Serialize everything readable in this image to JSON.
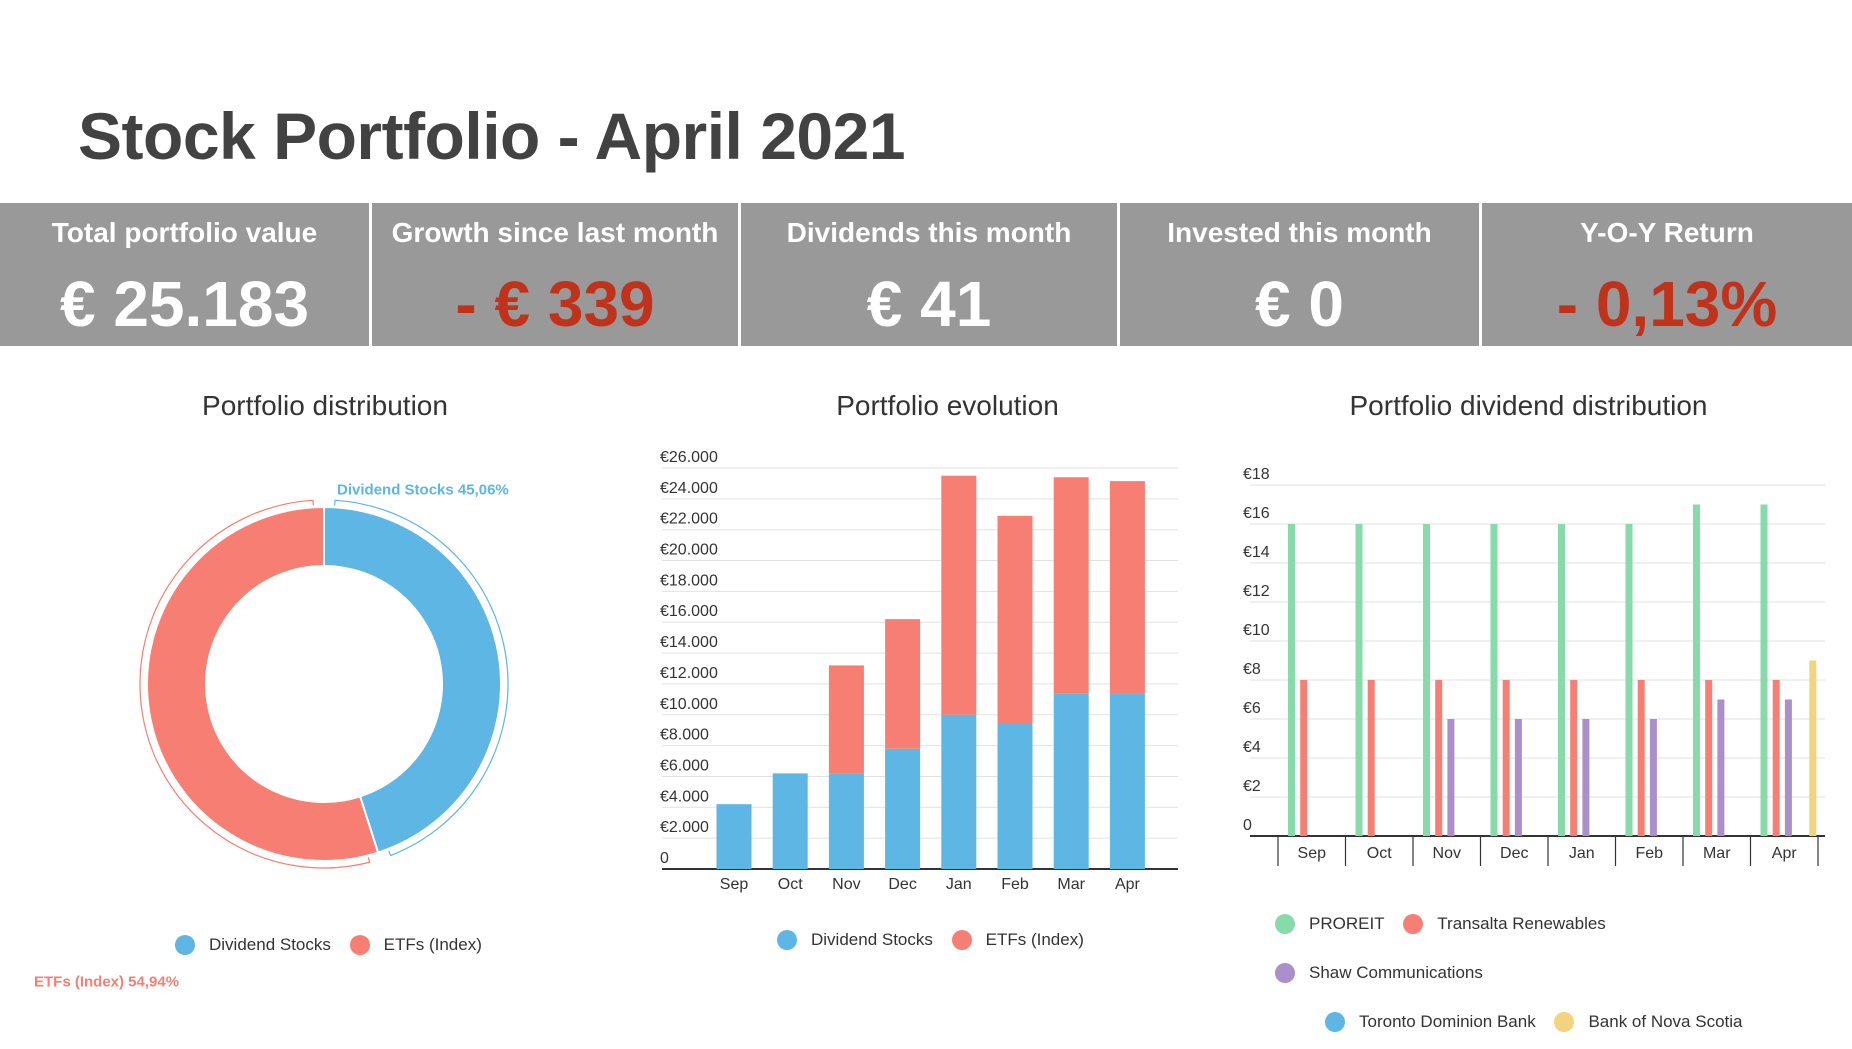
{
  "header": {
    "title": "Stock Portfolio - April 2021"
  },
  "kpis": [
    {
      "label": "Total portfolio value",
      "value": "€ 25.183",
      "negative": false
    },
    {
      "label": "Growth since last month",
      "value": "- € 339",
      "negative": true
    },
    {
      "label": "Dividends this month",
      "value": "€ 41",
      "negative": false
    },
    {
      "label": "Invested this month",
      "value": "€ 0",
      "negative": false
    },
    {
      "label": "Y-O-Y Return",
      "value": "- 0,13%",
      "negative": true
    }
  ],
  "colors": {
    "blue": "#5db6e3",
    "salmon": "#f77e72",
    "green": "#86dba8",
    "purple": "#ab8fcb",
    "yellow": "#f2d47f",
    "negative": "#c0321a",
    "kpi_band": "#999999",
    "grid": "#e2e2e2",
    "axis": "#333333"
  },
  "chart_data": [
    {
      "type": "pie",
      "subtype": "donut",
      "title": "Portfolio distribution",
      "slices": [
        {
          "name": "Dividend Stocks",
          "value": 45.06,
          "label": "Dividend Stocks 45,06%",
          "color": "#5db6e3"
        },
        {
          "name": "ETFs (Index)",
          "value": 54.94,
          "label": "ETFs (Index) 54,94%",
          "color": "#f77e72"
        }
      ],
      "legend": [
        "Dividend Stocks",
        "ETFs (Index)"
      ],
      "legend_position": "bottom"
    },
    {
      "type": "bar",
      "stacked": true,
      "title": "Portfolio evolution",
      "categories": [
        "Sep",
        "Oct",
        "Nov",
        "Dec",
        "Jan",
        "Feb",
        "Mar",
        "Apr"
      ],
      "series": [
        {
          "name": "Dividend Stocks",
          "color": "#5db6e3",
          "values": [
            4200,
            6200,
            6200,
            7800,
            10000,
            9400,
            11400,
            11350
          ]
        },
        {
          "name": "ETFs (Index)",
          "color": "#f77e72",
          "values": [
            0,
            0,
            7000,
            8400,
            15500,
            13500,
            14000,
            13800
          ]
        }
      ],
      "ylim": [
        0,
        26000
      ],
      "y_ticks": [
        "0",
        "€2.000",
        "€4.000",
        "€6.000",
        "€8.000",
        "€10.000",
        "€12.000",
        "€14.000",
        "€16.000",
        "€18.000",
        "€20.000",
        "€22.000",
        "€24.000",
        "€26.000"
      ],
      "grid": true,
      "legend_position": "bottom"
    },
    {
      "type": "bar",
      "stacked": false,
      "title": "Portfolio dividend distribution",
      "categories": [
        "Sep",
        "Oct",
        "Nov",
        "Dec",
        "Jan",
        "Feb",
        "Mar",
        "Apr"
      ],
      "series": [
        {
          "name": "PROREIT",
          "color": "#86dba8",
          "values": [
            16,
            16,
            16,
            16,
            16,
            16,
            17,
            17
          ]
        },
        {
          "name": "Transalta Renewables",
          "color": "#f77e72",
          "values": [
            8,
            8,
            8,
            8,
            8,
            8,
            8,
            8
          ]
        },
        {
          "name": "Shaw Communications",
          "color": "#ab8fcb",
          "values": [
            0,
            0,
            6,
            6,
            6,
            6,
            7,
            7
          ]
        },
        {
          "name": "Toronto Dominion Bank",
          "color": "#5db6e3",
          "values": [
            0,
            0,
            0,
            0,
            0,
            0,
            0,
            0
          ]
        },
        {
          "name": "Bank of Nova Scotia",
          "color": "#f2d47f",
          "values": [
            0,
            0,
            0,
            0,
            0,
            0,
            0,
            9
          ]
        }
      ],
      "ylim": [
        0,
        18
      ],
      "y_ticks": [
        "0",
        "€2",
        "€4",
        "€6",
        "€8",
        "€10",
        "€12",
        "€14",
        "€16",
        "€18"
      ],
      "grid": true,
      "legend_position": "bottom"
    }
  ]
}
